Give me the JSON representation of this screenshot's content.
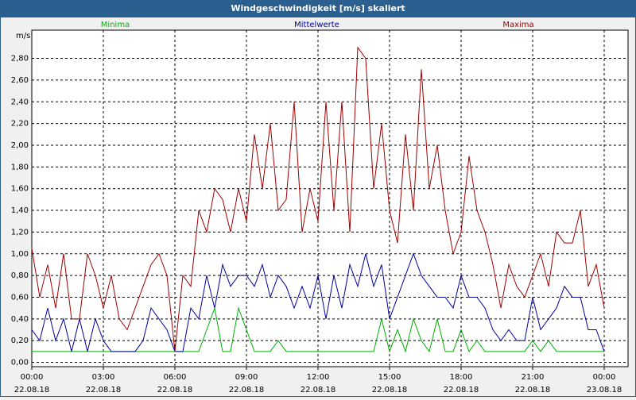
{
  "chart_data": {
    "type": "line",
    "title": "Windgeschwindigkeit [m/s] skaliert",
    "y_unit": "m/s",
    "xlim": [
      0,
      1500
    ],
    "ylim": [
      -0.04,
      3.06
    ],
    "grid": true,
    "legend": "top",
    "xticks": [
      {
        "value": 0,
        "label": "00:00",
        "date": "22.08.18"
      },
      {
        "value": 180,
        "label": "03:00",
        "date": "22.08.18"
      },
      {
        "value": 360,
        "label": "06:00",
        "date": "22.08.18"
      },
      {
        "value": 540,
        "label": "09:00",
        "date": "22.08.18"
      },
      {
        "value": 720,
        "label": "12:00",
        "date": "22.08.18"
      },
      {
        "value": 900,
        "label": "15:00",
        "date": "22.08.18"
      },
      {
        "value": 1080,
        "label": "18:00",
        "date": "22.08.18"
      },
      {
        "value": 1260,
        "label": "21:00",
        "date": "22.08.18"
      },
      {
        "value": 1440,
        "label": "00:00",
        "date": "23.08.18"
      }
    ],
    "yticks": [
      {
        "value": 0,
        "label": "0,00"
      },
      {
        "value": 0.2,
        "label": "0,20"
      },
      {
        "value": 0.4,
        "label": "0,40"
      },
      {
        "value": 0.6,
        "label": "0,60"
      },
      {
        "value": 0.8,
        "label": "0,80"
      },
      {
        "value": 1.0,
        "label": "1,00"
      },
      {
        "value": 1.2,
        "label": "1,20"
      },
      {
        "value": 1.4,
        "label": "1,40"
      },
      {
        "value": 1.6,
        "label": "1,60"
      },
      {
        "value": 1.8,
        "label": "1,80"
      },
      {
        "value": 2.0,
        "label": "2,00"
      },
      {
        "value": 2.2,
        "label": "2,20"
      },
      {
        "value": 2.4,
        "label": "2,40"
      },
      {
        "value": 2.6,
        "label": "2,60"
      },
      {
        "value": 2.8,
        "label": "2,80"
      }
    ],
    "x": [
      0,
      20,
      40,
      60,
      80,
      100,
      120,
      140,
      160,
      180,
      200,
      220,
      240,
      260,
      280,
      300,
      320,
      340,
      360,
      380,
      400,
      420,
      440,
      460,
      480,
      500,
      520,
      540,
      560,
      580,
      600,
      620,
      640,
      660,
      680,
      700,
      720,
      740,
      760,
      780,
      800,
      820,
      840,
      860,
      880,
      900,
      920,
      940,
      960,
      980,
      1000,
      1020,
      1040,
      1060,
      1080,
      1100,
      1120,
      1140,
      1160,
      1180,
      1200,
      1220,
      1240,
      1260,
      1280,
      1300,
      1320,
      1340,
      1360,
      1380,
      1400,
      1420,
      1440
    ],
    "series": [
      {
        "name": "Minima",
        "color": "#00b000",
        "values": [
          0.1,
          0.1,
          0.1,
          0.1,
          0.1,
          0.1,
          0.1,
          0.1,
          0.1,
          0.1,
          0.1,
          0.1,
          0.1,
          0.1,
          0.1,
          0.1,
          0.1,
          0.1,
          0.1,
          0.1,
          0.1,
          0.1,
          0.3,
          0.5,
          0.1,
          0.1,
          0.5,
          0.3,
          0.1,
          0.1,
          0.1,
          0.2,
          0.1,
          0.1,
          0.1,
          0.1,
          0.1,
          0.1,
          0.1,
          0.1,
          0.1,
          0.1,
          0.1,
          0.1,
          0.4,
          0.1,
          0.3,
          0.1,
          0.4,
          0.2,
          0.1,
          0.4,
          0.1,
          0.1,
          0.3,
          0.1,
          0.2,
          0.1,
          0.1,
          0.1,
          0.1,
          0.1,
          0.1,
          0.2,
          0.1,
          0.2,
          0.1,
          0.1,
          0.1,
          0.1,
          0.1,
          0.1,
          0.1
        ]
      },
      {
        "name": "Mittelwerte",
        "color": "#0000a0",
        "values": [
          0.3,
          0.2,
          0.5,
          0.2,
          0.4,
          0.1,
          0.4,
          0.1,
          0.4,
          0.2,
          0.1,
          0.1,
          0.1,
          0.1,
          0.2,
          0.5,
          0.4,
          0.3,
          0.1,
          0.1,
          0.5,
          0.4,
          0.8,
          0.5,
          0.9,
          0.7,
          0.8,
          0.8,
          0.7,
          0.9,
          0.6,
          0.8,
          0.7,
          0.5,
          0.7,
          0.5,
          0.8,
          0.4,
          0.8,
          0.5,
          0.9,
          0.7,
          1.0,
          0.7,
          0.9,
          0.4,
          0.6,
          0.8,
          1.0,
          0.8,
          0.7,
          0.6,
          0.6,
          0.5,
          0.8,
          0.6,
          0.6,
          0.5,
          0.3,
          0.2,
          0.3,
          0.2,
          0.2,
          0.6,
          0.3,
          0.4,
          0.5,
          0.7,
          0.6,
          0.6,
          0.3,
          0.3,
          0.1
        ]
      },
      {
        "name": "Maxima",
        "color": "#a00000",
        "values": [
          1.05,
          0.6,
          0.9,
          0.5,
          1.0,
          0.4,
          0.4,
          1.0,
          0.8,
          0.5,
          0.8,
          0.4,
          0.3,
          0.5,
          0.7,
          0.9,
          1.0,
          0.8,
          0.1,
          0.8,
          0.7,
          1.4,
          1.2,
          1.6,
          1.5,
          1.2,
          1.6,
          1.3,
          2.1,
          1.6,
          2.2,
          1.4,
          1.5,
          2.4,
          1.2,
          1.6,
          1.3,
          2.4,
          1.4,
          2.4,
          1.2,
          2.9,
          2.8,
          1.6,
          2.2,
          1.4,
          1.1,
          2.1,
          1.4,
          2.7,
          1.6,
          2.0,
          1.4,
          1.0,
          1.2,
          1.9,
          1.4,
          1.2,
          0.9,
          0.5,
          0.9,
          0.7,
          0.6,
          0.8,
          1.0,
          0.7,
          1.2,
          1.1,
          1.1,
          1.4,
          0.7,
          0.9,
          0.5
        ]
      }
    ]
  }
}
